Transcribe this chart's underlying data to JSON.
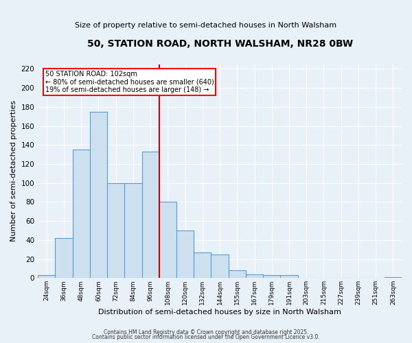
{
  "title": "50, STATION ROAD, NORTH WALSHAM, NR28 0BW",
  "subtitle": "Size of property relative to semi-detached houses in North Walsham",
  "xlabel": "Distribution of semi-detached houses by size in North Walsham",
  "ylabel": "Number of semi-detached properties",
  "bins": [
    "24sqm",
    "36sqm",
    "48sqm",
    "60sqm",
    "72sqm",
    "84sqm",
    "96sqm",
    "108sqm",
    "120sqm",
    "132sqm",
    "144sqm",
    "155sqm",
    "167sqm",
    "179sqm",
    "191sqm",
    "203sqm",
    "215sqm",
    "227sqm",
    "239sqm",
    "251sqm",
    "263sqm"
  ],
  "counts": [
    3,
    42,
    135,
    175,
    100,
    100,
    133,
    80,
    50,
    27,
    25,
    8,
    4,
    3,
    3,
    0,
    0,
    0,
    0,
    0,
    1
  ],
  "bar_color": "#cce0f0",
  "bar_edge_color": "#5b9bd5",
  "vline_bin_index": 7,
  "annotation_title": "50 STATION ROAD: 102sqm",
  "annotation_line1": "← 80% of semi-detached houses are smaller (640)",
  "annotation_line2": "19% of semi-detached houses are larger (148) →",
  "vline_color": "#cc0000",
  "background_color": "#e8f0f8",
  "ylim": [
    0,
    225
  ],
  "yticks": [
    0,
    20,
    40,
    60,
    80,
    100,
    120,
    140,
    160,
    180,
    200,
    220
  ],
  "footnote1": "Contains HM Land Registry data © Crown copyright and database right 2025.",
  "footnote2": "Contains public sector information licensed under the Open Government Licence v3.0."
}
